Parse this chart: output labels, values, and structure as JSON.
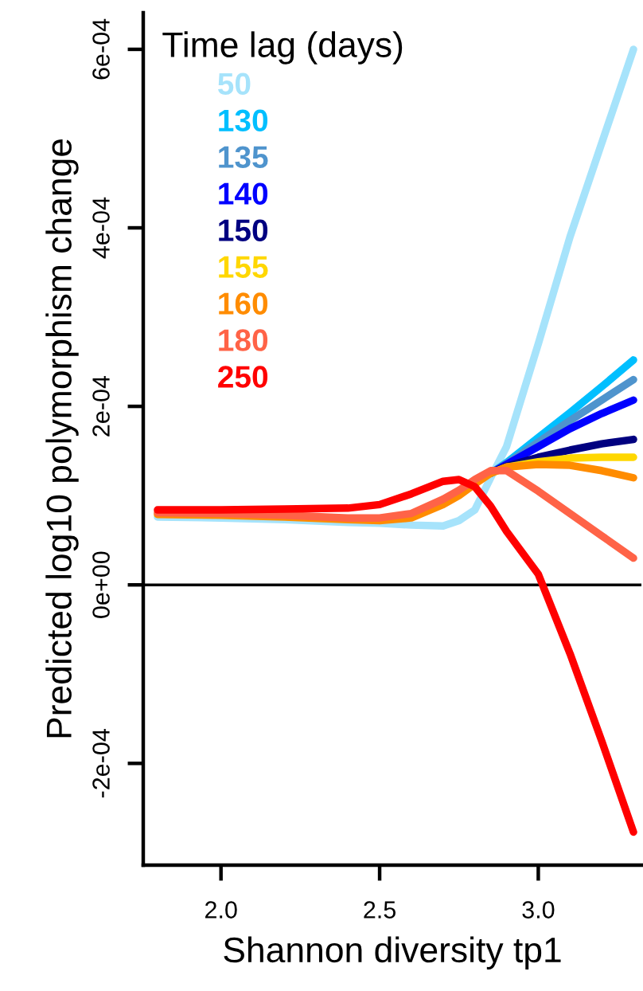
{
  "chart_data": {
    "type": "line",
    "xlabel": "Shannon diversity tp1",
    "ylabel": "Predicted log10 polymorphism change",
    "legend_title": "Time lag (days)",
    "x": [
      1.8,
      2.0,
      2.2,
      2.4,
      2.5,
      2.6,
      2.7,
      2.75,
      2.8,
      2.85,
      2.9,
      3.0,
      3.1,
      3.2,
      3.3
    ],
    "xlim": [
      1.755,
      3.325
    ],
    "xticks": [
      {
        "value": 2.0,
        "label": "2.0"
      },
      {
        "value": 2.5,
        "label": "2.5"
      },
      {
        "value": 3.0,
        "label": "3.0"
      }
    ],
    "ylim": [
      -0.000314,
      0.000641
    ],
    "yticks": [
      {
        "value": -0.0002,
        "label": "-2e-04"
      },
      {
        "value": 0,
        "label": "0e+00"
      },
      {
        "value": 0.0002,
        "label": "2e-04"
      },
      {
        "value": 0.0004,
        "label": "4e-04"
      },
      {
        "value": 0.0006,
        "label": "6e-04"
      }
    ],
    "grid": false,
    "legend": "top left",
    "marker": "none",
    "line_style": "solid",
    "ref_lines": [
      {
        "axis": "y",
        "value": 0,
        "color": "#000000"
      }
    ],
    "series": [
      {
        "name": "50",
        "color": "#a6e3fb",
        "values": [
          7.6e-05,
          7.5e-05,
          7.3e-05,
          7e-05,
          6.9e-05,
          6.7e-05,
          6.6e-05,
          7.2e-05,
          8.4e-05,
          0.00012,
          0.000155,
          0.00027,
          0.00039,
          0.000495,
          0.0006
        ]
      },
      {
        "name": "130",
        "color": "#00bfff",
        "values": [
          null,
          null,
          null,
          null,
          null,
          null,
          null,
          null,
          null,
          0.000125,
          0.000137,
          0.000165,
          0.000193,
          0.000222,
          0.000252
        ]
      },
      {
        "name": "135",
        "color": "#4f94cd",
        "values": [
          null,
          null,
          null,
          null,
          null,
          null,
          null,
          null,
          null,
          0.000125,
          0.000136,
          0.00016,
          0.000184,
          0.000207,
          0.00023
        ]
      },
      {
        "name": "140",
        "color": "#0000ff",
        "values": [
          null,
          null,
          null,
          null,
          null,
          null,
          null,
          null,
          null,
          0.000125,
          0.000135,
          0.000155,
          0.000175,
          0.000192,
          0.000207
        ]
      },
      {
        "name": "150",
        "color": "#000080",
        "values": [
          null,
          null,
          null,
          null,
          null,
          null,
          null,
          null,
          null,
          0.000125,
          0.000133,
          0.000143,
          0.000151,
          0.000158,
          0.000163
        ]
      },
      {
        "name": "155",
        "color": "#ffd700",
        "values": [
          null,
          null,
          null,
          null,
          null,
          null,
          null,
          null,
          null,
          0.000125,
          0.000132,
          0.000138,
          0.000142,
          0.000143,
          0.000143
        ]
      },
      {
        "name": "160",
        "color": "#ff8c00",
        "values": [
          7.9e-05,
          7.8e-05,
          7.6e-05,
          7.3e-05,
          7.2e-05,
          7.5e-05,
          9e-05,
          0.0001,
          0.000113,
          0.000125,
          0.000132,
          0.000135,
          0.000134,
          0.000128,
          0.00012
        ]
      },
      {
        "name": "180",
        "color": "#ff6347",
        "values": [
          8.1e-05,
          8e-05,
          7.8e-05,
          7.5e-05,
          7.5e-05,
          8e-05,
          9.6e-05,
          0.000106,
          0.000118,
          0.000128,
          0.000128,
          0.000105,
          8e-05,
          5.5e-05,
          3e-05
        ]
      },
      {
        "name": "250",
        "color": "#ff0000",
        "values": [
          8.4e-05,
          8.4e-05,
          8.5e-05,
          8.6e-05,
          9e-05,
          0.000102,
          0.000116,
          0.000118,
          0.00011,
          8.8e-05,
          6e-05,
          1.2e-05,
          -7.7e-05,
          -0.000175,
          -0.000277
        ]
      }
    ]
  }
}
